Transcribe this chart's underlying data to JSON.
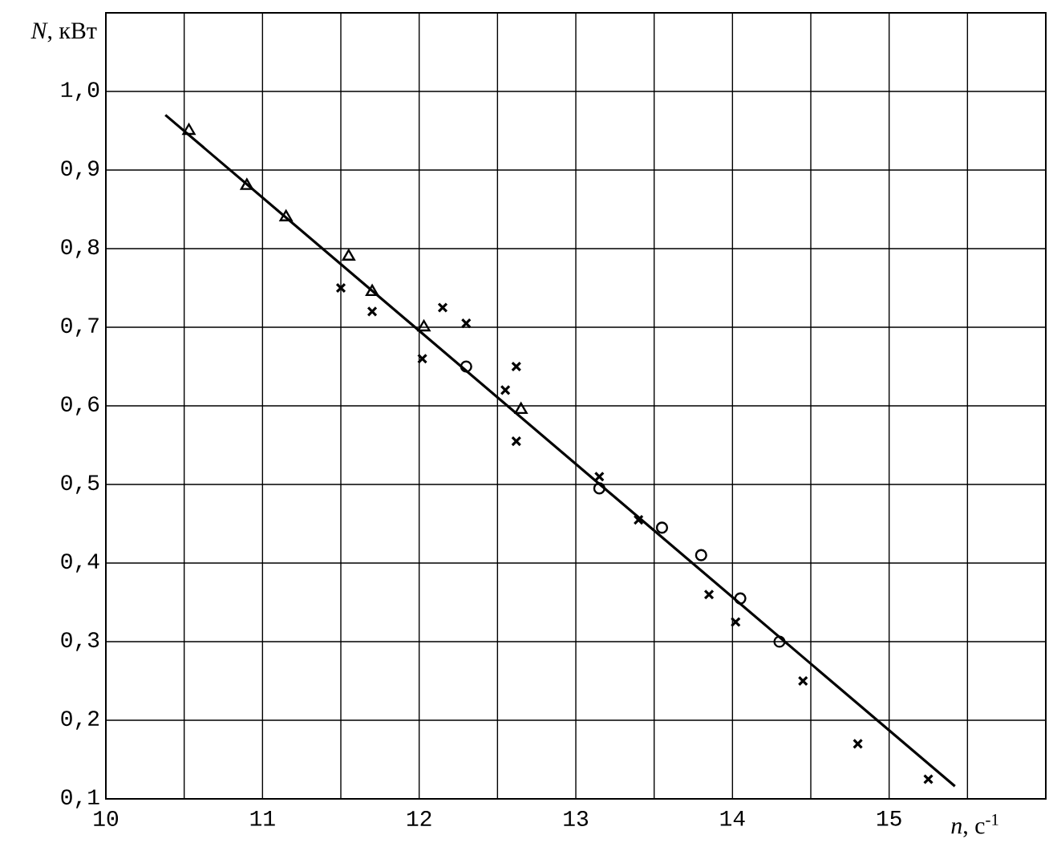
{
  "chart_data": {
    "type": "scatter",
    "xlabel": "*n*,  с$^{-1}$",
    "ylabel": "*N*, кВт",
    "xlim": [
      10,
      16
    ],
    "ylim": [
      0.1,
      1.1
    ],
    "xticks": [
      {
        "value": 10,
        "label": "10"
      },
      {
        "value": 10.5,
        "label": null
      },
      {
        "value": 11,
        "label": "11"
      },
      {
        "value": 11.5,
        "label": null
      },
      {
        "value": 12,
        "label": "12"
      },
      {
        "value": 12.5,
        "label": null
      },
      {
        "value": 13,
        "label": "13"
      },
      {
        "value": 13.5,
        "label": null
      },
      {
        "value": 14,
        "label": "14"
      },
      {
        "value": 14.5,
        "label": null
      },
      {
        "value": 15,
        "label": "15"
      },
      {
        "value": 15.5,
        "label": null
      },
      {
        "value": 16,
        "label": null
      }
    ],
    "yticks": [
      {
        "value": 0.1,
        "label": "0,1"
      },
      {
        "value": 0.2,
        "label": "0,2"
      },
      {
        "value": 0.3,
        "label": "0,3"
      },
      {
        "value": 0.4,
        "label": "0,4"
      },
      {
        "value": 0.5,
        "label": "0,5"
      },
      {
        "value": 0.6,
        "label": "0,6"
      },
      {
        "value": 0.7,
        "label": "0,7"
      },
      {
        "value": 0.8,
        "label": "0,8"
      },
      {
        "value": 0.9,
        "label": "0,9"
      },
      {
        "value": 1.0,
        "label": "1,0"
      },
      {
        "value": 1.1,
        "label": null
      }
    ],
    "grid": true,
    "series": [
      {
        "marker": "triangle",
        "color": "#000000",
        "x": [
          10.53,
          10.9,
          11.15,
          11.55,
          11.7,
          12.03,
          12.65
        ],
        "values": [
          0.95,
          0.88,
          0.84,
          0.79,
          0.745,
          0.7,
          0.595
        ]
      },
      {
        "marker": "circle",
        "color": "#000000",
        "x": [
          12.3,
          13.15,
          13.55,
          13.8,
          14.05,
          14.3
        ],
        "values": [
          0.65,
          0.495,
          0.445,
          0.41,
          0.355,
          0.3
        ]
      },
      {
        "marker": "cross",
        "color": "#000000",
        "x": [
          11.5,
          11.7,
          12.02,
          12.15,
          12.3,
          12.55,
          12.62,
          12.62,
          13.15,
          13.4,
          13.85,
          14.02,
          14.45,
          14.8,
          15.25
        ],
        "values": [
          0.75,
          0.72,
          0.66,
          0.725,
          0.705,
          0.62,
          0.65,
          0.555,
          0.51,
          0.455,
          0.36,
          0.325,
          0.25,
          0.17,
          0.125
        ]
      },
      {
        "type": "line",
        "marker": "none",
        "line_style": "solid",
        "color": "#000000",
        "x": [
          10.38,
          15.42
        ],
        "values": [
          0.97,
          0.116
        ]
      }
    ]
  }
}
